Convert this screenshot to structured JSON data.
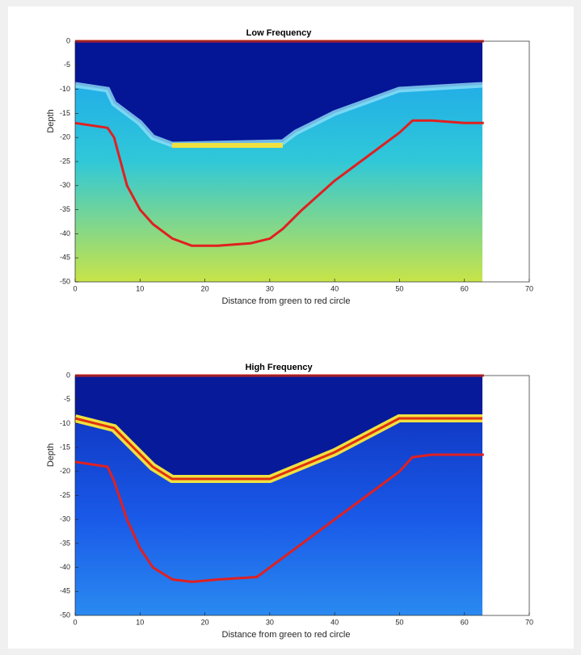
{
  "chart_data": [
    {
      "type": "line",
      "title": "Low Frequency",
      "x_label": "Distance from green to red circle",
      "y_label": "Depth",
      "xlim": [
        0,
        70
      ],
      "ylim": [
        -50,
        0
      ],
      "xticks": [
        0,
        10,
        20,
        30,
        40,
        50,
        60,
        70
      ],
      "yticks": [
        0,
        -5,
        -10,
        -15,
        -20,
        -25,
        -30,
        -35,
        -40,
        -45,
        -50
      ],
      "series": [
        {
          "color": "#e02020",
          "x": [
            0,
            63
          ],
          "values": [
            0,
            0
          ]
        },
        {
          "color": "#e02020",
          "x": [
            0,
            5,
            6,
            7,
            8,
            10,
            12,
            15,
            18,
            22,
            27,
            30,
            32,
            35,
            40,
            45,
            50,
            52,
            55,
            60,
            63
          ],
          "values": [
            -17,
            -18,
            -20,
            -25,
            -30,
            -35,
            -38,
            -41,
            -42.5,
            -42.5,
            -42,
            -41,
            -39,
            -35,
            -29,
            -24,
            -19,
            -16.5,
            -16.5,
            -17,
            -17
          ]
        }
      ]
    },
    {
      "type": "line",
      "title": "High Frequency",
      "x_label": "Distance from green to red circle",
      "y_label": "Depth",
      "xlim": [
        0,
        70
      ],
      "ylim": [
        -50,
        0
      ],
      "xticks": [
        0,
        10,
        20,
        30,
        40,
        50,
        60,
        70
      ],
      "yticks": [
        0,
        -5,
        -10,
        -15,
        -20,
        -25,
        -30,
        -35,
        -40,
        -45,
        -50
      ],
      "series": [
        {
          "color": "#e02020",
          "x": [
            0,
            63
          ],
          "values": [
            0,
            0
          ]
        },
        {
          "color": "#e02020",
          "x": [
            0,
            5,
            6,
            8,
            10,
            12,
            15,
            18,
            22,
            28,
            30,
            35,
            40,
            45,
            50,
            52,
            55,
            63
          ],
          "values": [
            -18,
            -19,
            -22,
            -30,
            -36,
            -40,
            -42.5,
            -43,
            -42.5,
            -42,
            -40,
            -35,
            -30,
            -25,
            -20,
            -17,
            -16.5,
            -16.5
          ]
        }
      ]
    }
  ]
}
